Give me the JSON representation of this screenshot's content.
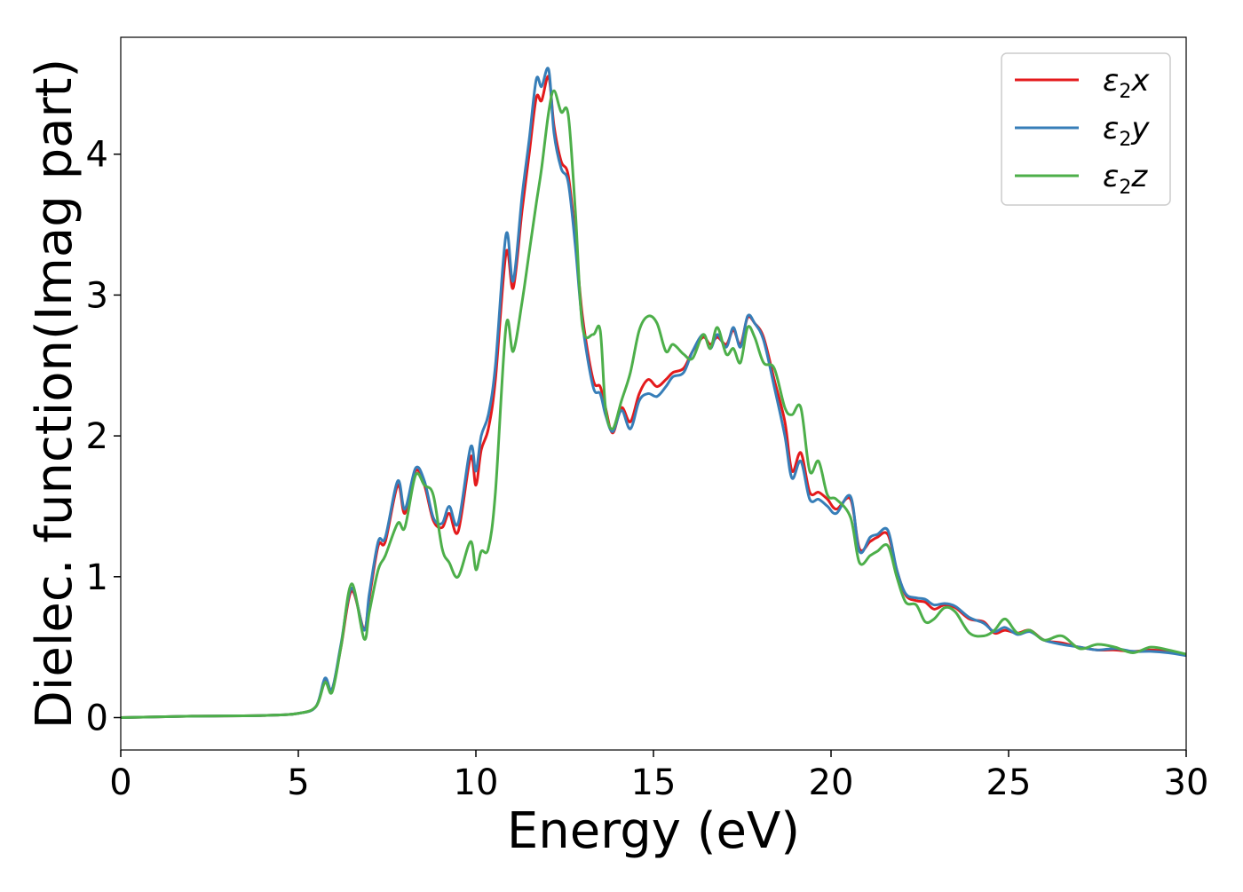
{
  "chart_data": {
    "type": "line",
    "xlabel": "Energy (eV)",
    "ylabel": "Dielec. function(Imag part)",
    "xlim": [
      0,
      30
    ],
    "ylim": [
      -0.23,
      4.83
    ],
    "xticks": [
      0,
      5,
      10,
      15,
      20,
      25,
      30
    ],
    "yticks": [
      0,
      1,
      2,
      3,
      4
    ],
    "grid": false,
    "legend_position": "top-right",
    "series": [
      {
        "name": "ε₂x",
        "symbol": "ε",
        "subscript": "2",
        "axis": "x",
        "color": "#e41a1c",
        "points": [
          [
            0,
            0
          ],
          [
            2,
            0.01
          ],
          [
            4,
            0.015
          ],
          [
            5,
            0.03
          ],
          [
            5.5,
            0.08
          ],
          [
            5.75,
            0.26
          ],
          [
            5.95,
            0.2
          ],
          [
            6.2,
            0.5
          ],
          [
            6.5,
            0.9
          ],
          [
            6.85,
            0.63
          ],
          [
            7.0,
            0.85
          ],
          [
            7.25,
            1.22
          ],
          [
            7.45,
            1.25
          ],
          [
            7.8,
            1.65
          ],
          [
            8.0,
            1.45
          ],
          [
            8.3,
            1.75
          ],
          [
            8.55,
            1.65
          ],
          [
            8.8,
            1.4
          ],
          [
            9.05,
            1.35
          ],
          [
            9.25,
            1.45
          ],
          [
            9.5,
            1.32
          ],
          [
            9.85,
            1.85
          ],
          [
            10.0,
            1.65
          ],
          [
            10.15,
            1.9
          ],
          [
            10.35,
            2.05
          ],
          [
            10.55,
            2.4
          ],
          [
            10.85,
            3.3
          ],
          [
            11.05,
            3.05
          ],
          [
            11.3,
            3.6
          ],
          [
            11.5,
            4.0
          ],
          [
            11.7,
            4.4
          ],
          [
            11.85,
            4.38
          ],
          [
            12.05,
            4.55
          ],
          [
            12.2,
            4.2
          ],
          [
            12.4,
            3.95
          ],
          [
            12.6,
            3.85
          ],
          [
            12.8,
            3.4
          ],
          [
            13.0,
            2.85
          ],
          [
            13.3,
            2.4
          ],
          [
            13.5,
            2.35
          ],
          [
            13.65,
            2.2
          ],
          [
            13.85,
            2.02
          ],
          [
            14.1,
            2.2
          ],
          [
            14.35,
            2.1
          ],
          [
            14.6,
            2.3
          ],
          [
            14.85,
            2.4
          ],
          [
            15.1,
            2.35
          ],
          [
            15.35,
            2.4
          ],
          [
            15.55,
            2.45
          ],
          [
            15.85,
            2.48
          ],
          [
            16.1,
            2.6
          ],
          [
            16.4,
            2.7
          ],
          [
            16.6,
            2.65
          ],
          [
            16.8,
            2.7
          ],
          [
            17.05,
            2.65
          ],
          [
            17.25,
            2.75
          ],
          [
            17.45,
            2.65
          ],
          [
            17.65,
            2.84
          ],
          [
            17.85,
            2.8
          ],
          [
            18.1,
            2.7
          ],
          [
            18.4,
            2.4
          ],
          [
            18.7,
            2.1
          ],
          [
            18.9,
            1.75
          ],
          [
            19.15,
            1.88
          ],
          [
            19.4,
            1.6
          ],
          [
            19.65,
            1.6
          ],
          [
            19.9,
            1.55
          ],
          [
            20.15,
            1.48
          ],
          [
            20.55,
            1.55
          ],
          [
            20.8,
            1.2
          ],
          [
            21.1,
            1.25
          ],
          [
            21.3,
            1.28
          ],
          [
            21.6,
            1.3
          ],
          [
            21.85,
            1.05
          ],
          [
            22.1,
            0.87
          ],
          [
            22.4,
            0.83
          ],
          [
            22.65,
            0.82
          ],
          [
            22.9,
            0.77
          ],
          [
            23.2,
            0.8
          ],
          [
            23.5,
            0.78
          ],
          [
            23.9,
            0.7
          ],
          [
            24.3,
            0.68
          ],
          [
            24.6,
            0.6
          ],
          [
            24.9,
            0.62
          ],
          [
            25.25,
            0.6
          ],
          [
            25.6,
            0.62
          ],
          [
            26.0,
            0.55
          ],
          [
            26.5,
            0.53
          ],
          [
            27.0,
            0.5
          ],
          [
            27.5,
            0.48
          ],
          [
            28.0,
            0.48
          ],
          [
            28.5,
            0.47
          ],
          [
            29.0,
            0.48
          ],
          [
            29.5,
            0.47
          ],
          [
            30.0,
            0.44
          ]
        ]
      },
      {
        "name": "ε₂y",
        "symbol": "ε",
        "subscript": "2",
        "axis": "y",
        "color": "#377eb8",
        "points": [
          [
            0,
            0
          ],
          [
            2,
            0.01
          ],
          [
            4,
            0.015
          ],
          [
            5,
            0.03
          ],
          [
            5.5,
            0.08
          ],
          [
            5.75,
            0.28
          ],
          [
            5.95,
            0.2
          ],
          [
            6.2,
            0.52
          ],
          [
            6.5,
            0.92
          ],
          [
            6.85,
            0.62
          ],
          [
            7.0,
            0.88
          ],
          [
            7.25,
            1.25
          ],
          [
            7.45,
            1.28
          ],
          [
            7.8,
            1.68
          ],
          [
            8.0,
            1.48
          ],
          [
            8.3,
            1.77
          ],
          [
            8.55,
            1.68
          ],
          [
            8.8,
            1.42
          ],
          [
            9.05,
            1.38
          ],
          [
            9.25,
            1.5
          ],
          [
            9.5,
            1.38
          ],
          [
            9.85,
            1.92
          ],
          [
            10.0,
            1.75
          ],
          [
            10.15,
            2.0
          ],
          [
            10.35,
            2.15
          ],
          [
            10.55,
            2.5
          ],
          [
            10.85,
            3.43
          ],
          [
            11.05,
            3.1
          ],
          [
            11.3,
            3.7
          ],
          [
            11.5,
            4.1
          ],
          [
            11.7,
            4.53
          ],
          [
            11.85,
            4.48
          ],
          [
            12.05,
            4.6
          ],
          [
            12.2,
            4.15
          ],
          [
            12.4,
            3.9
          ],
          [
            12.6,
            3.8
          ],
          [
            12.8,
            3.35
          ],
          [
            13.0,
            2.8
          ],
          [
            13.3,
            2.35
          ],
          [
            13.5,
            2.3
          ],
          [
            13.65,
            2.15
          ],
          [
            13.85,
            2.03
          ],
          [
            14.1,
            2.18
          ],
          [
            14.35,
            2.05
          ],
          [
            14.6,
            2.25
          ],
          [
            14.85,
            2.3
          ],
          [
            15.1,
            2.28
          ],
          [
            15.35,
            2.35
          ],
          [
            15.55,
            2.42
          ],
          [
            15.85,
            2.45
          ],
          [
            16.1,
            2.6
          ],
          [
            16.4,
            2.72
          ],
          [
            16.6,
            2.62
          ],
          [
            16.8,
            2.72
          ],
          [
            17.05,
            2.63
          ],
          [
            17.25,
            2.77
          ],
          [
            17.45,
            2.63
          ],
          [
            17.65,
            2.85
          ],
          [
            17.85,
            2.8
          ],
          [
            18.1,
            2.68
          ],
          [
            18.4,
            2.35
          ],
          [
            18.7,
            2.0
          ],
          [
            18.9,
            1.7
          ],
          [
            19.15,
            1.82
          ],
          [
            19.4,
            1.55
          ],
          [
            19.65,
            1.55
          ],
          [
            19.9,
            1.5
          ],
          [
            20.15,
            1.45
          ],
          [
            20.55,
            1.57
          ],
          [
            20.8,
            1.18
          ],
          [
            21.1,
            1.28
          ],
          [
            21.3,
            1.3
          ],
          [
            21.6,
            1.33
          ],
          [
            21.85,
            1.05
          ],
          [
            22.1,
            0.88
          ],
          [
            22.4,
            0.85
          ],
          [
            22.65,
            0.84
          ],
          [
            22.9,
            0.8
          ],
          [
            23.2,
            0.81
          ],
          [
            23.5,
            0.79
          ],
          [
            23.9,
            0.71
          ],
          [
            24.3,
            0.67
          ],
          [
            24.6,
            0.61
          ],
          [
            24.9,
            0.64
          ],
          [
            25.25,
            0.59
          ],
          [
            25.6,
            0.61
          ],
          [
            26.0,
            0.55
          ],
          [
            26.5,
            0.52
          ],
          [
            27.0,
            0.5
          ],
          [
            27.5,
            0.48
          ],
          [
            28.0,
            0.49
          ],
          [
            28.5,
            0.47
          ],
          [
            29.0,
            0.47
          ],
          [
            29.5,
            0.46
          ],
          [
            30.0,
            0.44
          ]
        ]
      },
      {
        "name": "ε₂z",
        "symbol": "ε",
        "subscript": "2",
        "axis": "z",
        "color": "#4daf4a",
        "points": [
          [
            0,
            0
          ],
          [
            2,
            0.01
          ],
          [
            4,
            0.015
          ],
          [
            5,
            0.03
          ],
          [
            5.5,
            0.08
          ],
          [
            5.75,
            0.25
          ],
          [
            5.95,
            0.18
          ],
          [
            6.2,
            0.5
          ],
          [
            6.5,
            0.95
          ],
          [
            6.85,
            0.56
          ],
          [
            7.0,
            0.75
          ],
          [
            7.25,
            1.05
          ],
          [
            7.45,
            1.15
          ],
          [
            7.8,
            1.38
          ],
          [
            8.0,
            1.35
          ],
          [
            8.3,
            1.72
          ],
          [
            8.55,
            1.65
          ],
          [
            8.8,
            1.58
          ],
          [
            9.05,
            1.2
          ],
          [
            9.25,
            1.1
          ],
          [
            9.5,
            1.0
          ],
          [
            9.85,
            1.25
          ],
          [
            10.0,
            1.05
          ],
          [
            10.15,
            1.18
          ],
          [
            10.35,
            1.2
          ],
          [
            10.55,
            1.6
          ],
          [
            10.85,
            2.78
          ],
          [
            11.05,
            2.6
          ],
          [
            11.3,
            2.95
          ],
          [
            11.5,
            3.3
          ],
          [
            11.7,
            3.65
          ],
          [
            11.85,
            3.9
          ],
          [
            12.05,
            4.3
          ],
          [
            12.2,
            4.45
          ],
          [
            12.4,
            4.3
          ],
          [
            12.6,
            4.28
          ],
          [
            12.8,
            3.6
          ],
          [
            13.0,
            2.78
          ],
          [
            13.3,
            2.72
          ],
          [
            13.5,
            2.75
          ],
          [
            13.65,
            2.2
          ],
          [
            13.85,
            2.05
          ],
          [
            14.1,
            2.25
          ],
          [
            14.35,
            2.45
          ],
          [
            14.6,
            2.75
          ],
          [
            14.85,
            2.85
          ],
          [
            15.1,
            2.8
          ],
          [
            15.35,
            2.6
          ],
          [
            15.55,
            2.65
          ],
          [
            15.85,
            2.58
          ],
          [
            16.1,
            2.55
          ],
          [
            16.4,
            2.72
          ],
          [
            16.6,
            2.62
          ],
          [
            16.8,
            2.77
          ],
          [
            17.05,
            2.58
          ],
          [
            17.25,
            2.62
          ],
          [
            17.45,
            2.52
          ],
          [
            17.65,
            2.77
          ],
          [
            17.85,
            2.7
          ],
          [
            18.1,
            2.52
          ],
          [
            18.4,
            2.48
          ],
          [
            18.7,
            2.2
          ],
          [
            18.9,
            2.15
          ],
          [
            19.15,
            2.2
          ],
          [
            19.4,
            1.75
          ],
          [
            19.65,
            1.82
          ],
          [
            19.9,
            1.58
          ],
          [
            20.15,
            1.55
          ],
          [
            20.55,
            1.42
          ],
          [
            20.8,
            1.1
          ],
          [
            21.1,
            1.15
          ],
          [
            21.3,
            1.18
          ],
          [
            21.6,
            1.22
          ],
          [
            21.85,
            1.0
          ],
          [
            22.1,
            0.82
          ],
          [
            22.4,
            0.8
          ],
          [
            22.65,
            0.68
          ],
          [
            22.9,
            0.7
          ],
          [
            23.2,
            0.78
          ],
          [
            23.5,
            0.75
          ],
          [
            23.9,
            0.6
          ],
          [
            24.3,
            0.58
          ],
          [
            24.6,
            0.62
          ],
          [
            24.9,
            0.7
          ],
          [
            25.25,
            0.6
          ],
          [
            25.6,
            0.62
          ],
          [
            26.0,
            0.55
          ],
          [
            26.5,
            0.58
          ],
          [
            27.0,
            0.49
          ],
          [
            27.5,
            0.52
          ],
          [
            28.0,
            0.5
          ],
          [
            28.5,
            0.46
          ],
          [
            29.0,
            0.5
          ],
          [
            29.5,
            0.48
          ],
          [
            30.0,
            0.45
          ]
        ]
      }
    ]
  }
}
